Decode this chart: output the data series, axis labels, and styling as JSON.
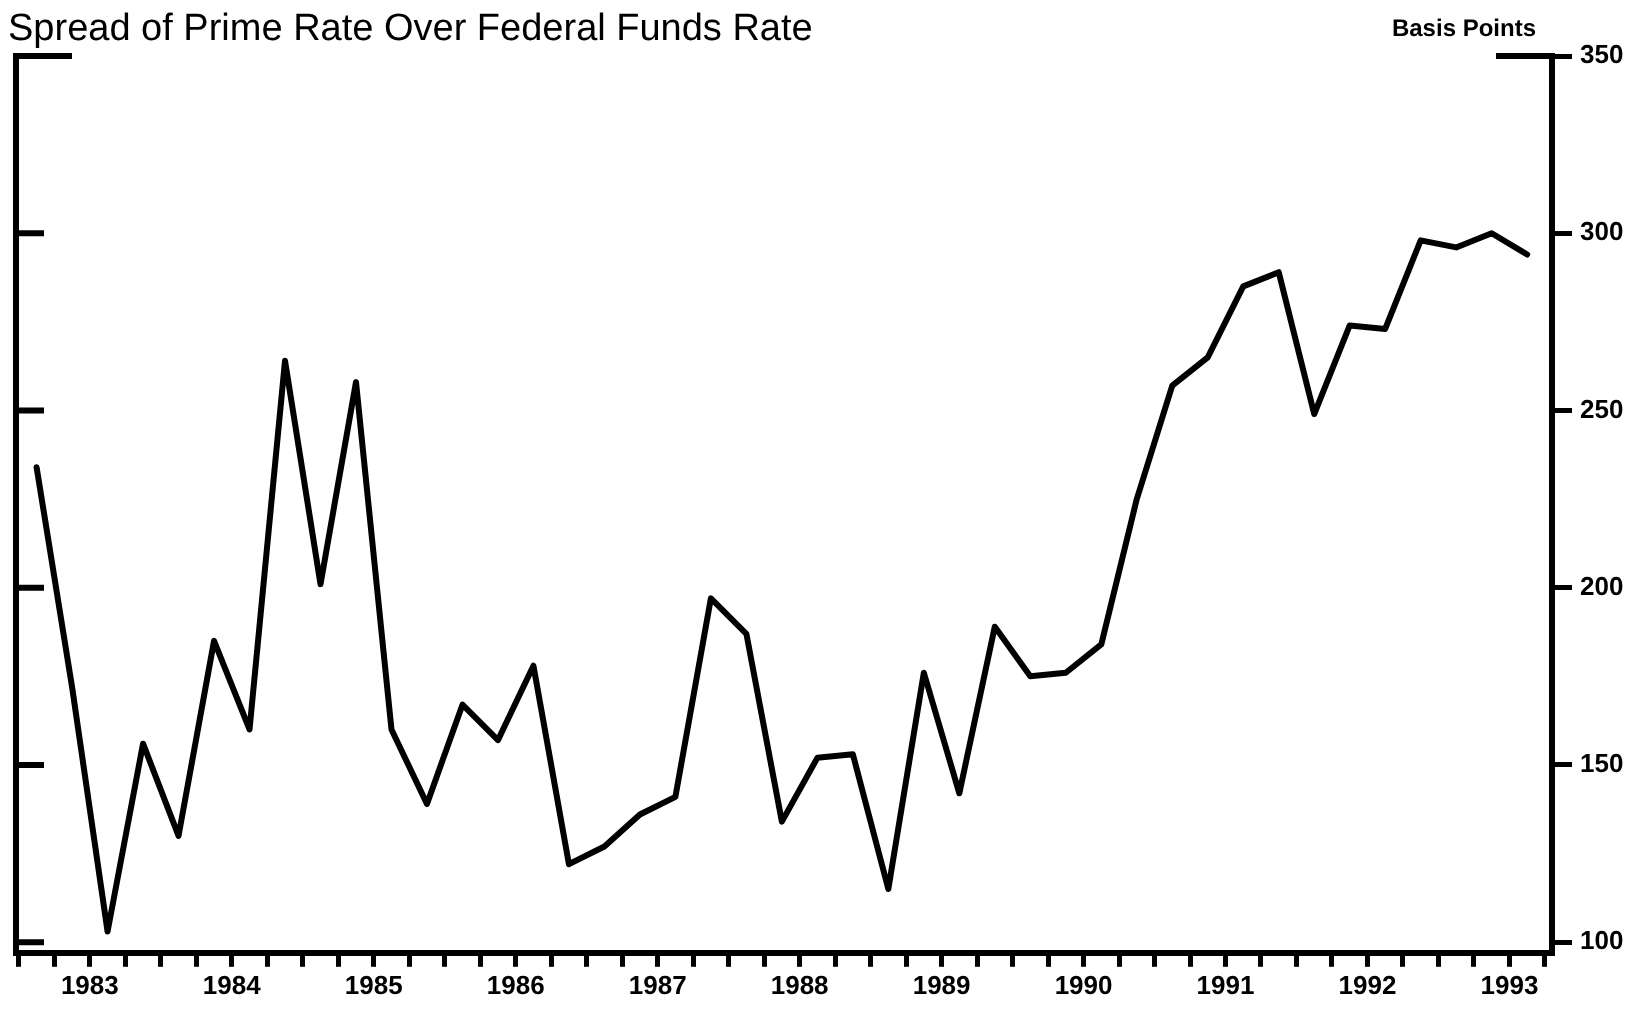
{
  "chart_data": {
    "type": "line",
    "title": "Spread of Prime Rate Over Federal Funds Rate",
    "ylabel": "Basis Points",
    "x": [
      1982.625,
      1982.875,
      1983.125,
      1983.375,
      1983.625,
      1983.875,
      1984.125,
      1984.375,
      1984.625,
      1984.875,
      1985.125,
      1985.375,
      1985.625,
      1985.875,
      1986.125,
      1986.375,
      1986.625,
      1986.875,
      1987.125,
      1987.375,
      1987.625,
      1987.875,
      1988.125,
      1988.375,
      1988.625,
      1988.875,
      1989.125,
      1989.375,
      1989.625,
      1989.875,
      1990.125,
      1990.375,
      1990.625,
      1990.875,
      1991.125,
      1991.375,
      1991.625,
      1991.875,
      1992.125,
      1992.375,
      1992.625,
      1992.875,
      1993.125
    ],
    "series": [
      {
        "color": "#000000",
        "values": [
          234,
          172,
          103,
          156,
          130,
          185,
          160,
          264,
          201,
          258,
          160,
          139,
          167,
          157,
          178,
          122,
          127,
          136,
          141,
          197,
          187,
          134,
          152,
          153,
          115,
          176,
          142,
          189,
          175,
          176,
          184,
          225,
          257,
          265,
          285,
          289,
          249,
          274,
          273,
          298,
          296,
          300,
          294
        ]
      }
    ],
    "xlim": [
      1982.48,
      1993.3
    ],
    "ylim": [
      97,
      350
    ],
    "yticks": [
      100,
      150,
      200,
      250,
      300,
      350
    ],
    "xticks": [
      {
        "value": 1982.5,
        "label": null
      },
      {
        "value": 1982.75,
        "label": null
      },
      1983,
      {
        "value": 1983.25,
        "label": null
      },
      {
        "value": 1983.5,
        "label": null
      },
      {
        "value": 1983.75,
        "label": null
      },
      1984,
      {
        "value": 1984.25,
        "label": null
      },
      {
        "value": 1984.5,
        "label": null
      },
      {
        "value": 1984.75,
        "label": null
      },
      1985,
      {
        "value": 1985.25,
        "label": null
      },
      {
        "value": 1985.5,
        "label": null
      },
      {
        "value": 1985.75,
        "label": null
      },
      1986,
      {
        "value": 1986.25,
        "label": null
      },
      {
        "value": 1986.5,
        "label": null
      },
      {
        "value": 1986.75,
        "label": null
      },
      1987,
      {
        "value": 1987.25,
        "label": null
      },
      {
        "value": 1987.5,
        "label": null
      },
      {
        "value": 1987.75,
        "label": null
      },
      1988,
      {
        "value": 1988.25,
        "label": null
      },
      {
        "value": 1988.5,
        "label": null
      },
      {
        "value": 1988.75,
        "label": null
      },
      1989,
      {
        "value": 1989.25,
        "label": null
      },
      {
        "value": 1989.5,
        "label": null
      },
      {
        "value": 1989.75,
        "label": null
      },
      1990,
      {
        "value": 1990.25,
        "label": null
      },
      {
        "value": 1990.5,
        "label": null
      },
      {
        "value": 1990.75,
        "label": null
      },
      1991,
      {
        "value": 1991.25,
        "label": null
      },
      {
        "value": 1991.5,
        "label": null
      },
      {
        "value": 1991.75,
        "label": null
      },
      1992,
      {
        "value": 1992.25,
        "label": null
      },
      {
        "value": 1992.5,
        "label": null
      },
      {
        "value": 1992.75,
        "label": null
      },
      1993,
      {
        "value": 1993.25,
        "label": null
      }
    ],
    "grid": false,
    "legend": false,
    "marker": "none",
    "line_style": "solid"
  }
}
